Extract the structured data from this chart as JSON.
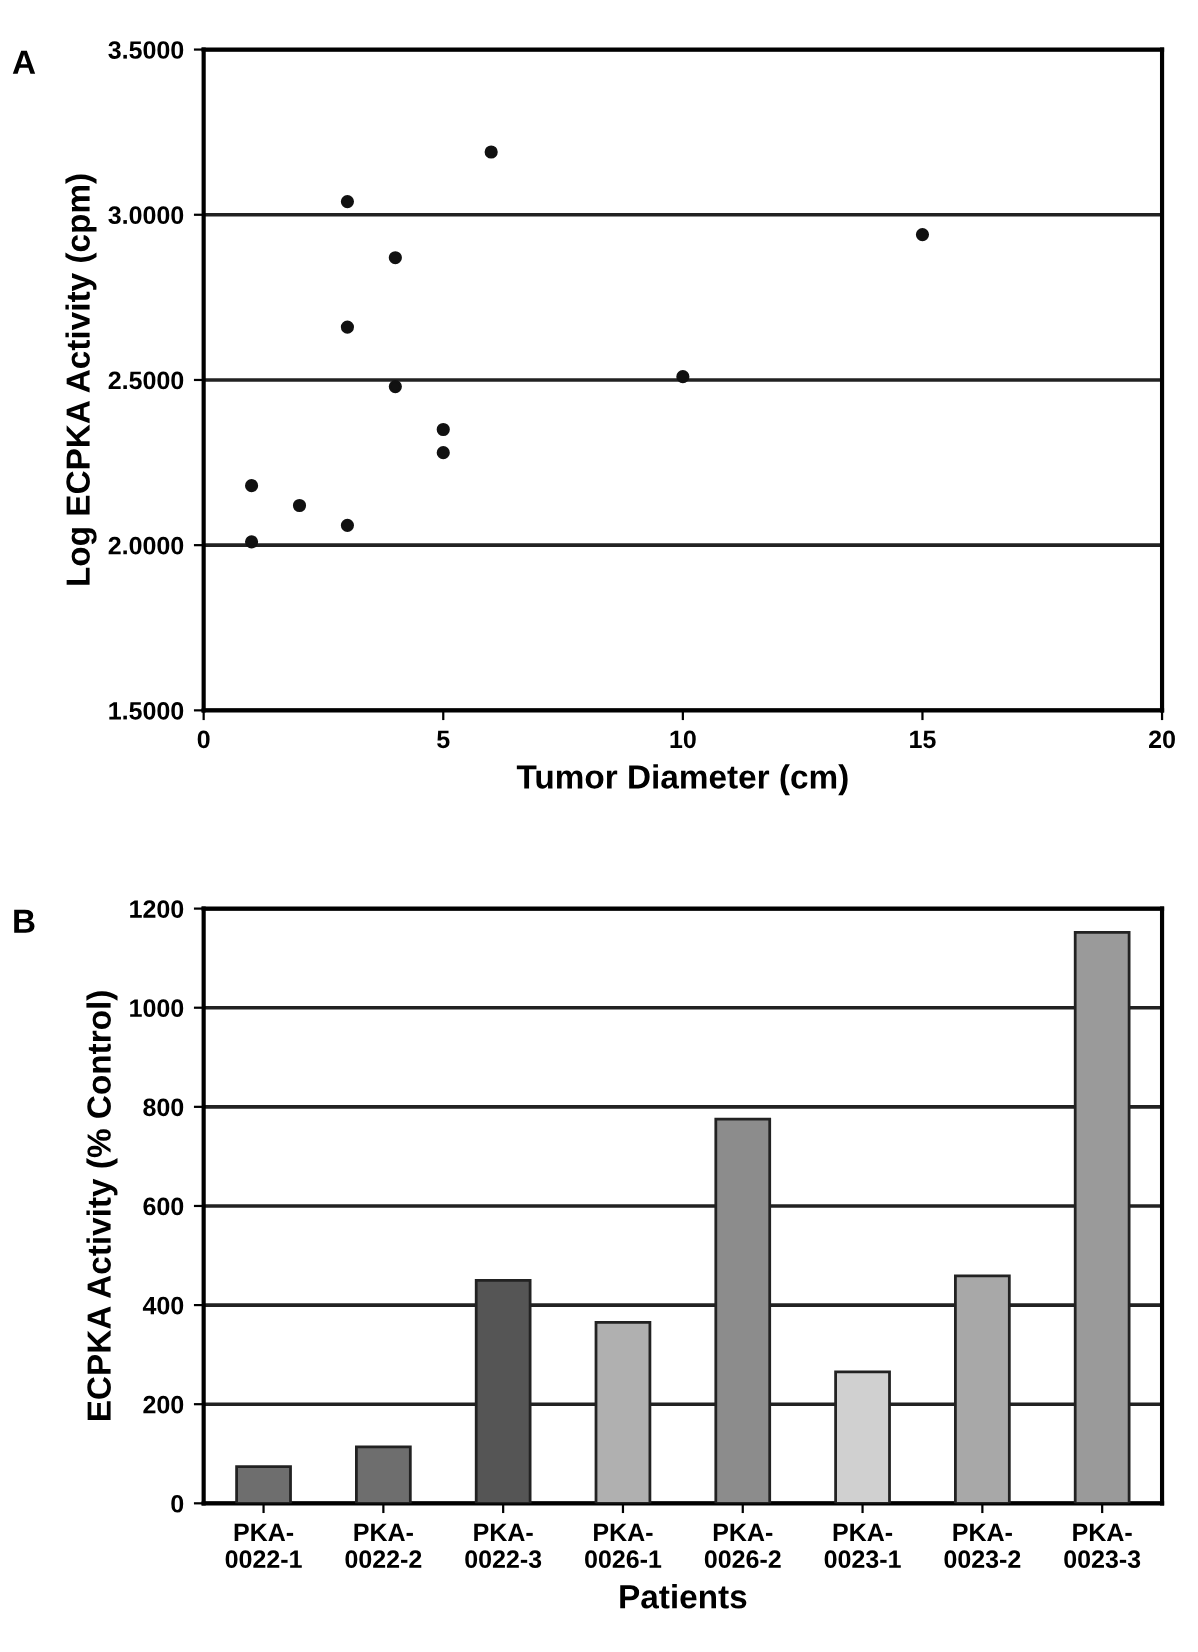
{
  "chart_data": [
    {
      "type": "scatter",
      "annotations": [
        "A"
      ],
      "xlabel": "Tumor Diameter (cm)",
      "ylabel": "Log ECPKA Activity (cpm)",
      "x": [
        6,
        3,
        4,
        3,
        4,
        5,
        5,
        1,
        2,
        3,
        1,
        10,
        15
      ],
      "values": [
        3.19,
        3.04,
        2.87,
        2.66,
        2.48,
        2.35,
        2.28,
        2.18,
        2.12,
        2.06,
        2.01,
        2.51,
        2.94
      ],
      "color": "#111111",
      "marker": "circle",
      "xlim": [
        0,
        20
      ],
      "xticks": [
        0,
        5,
        10,
        15,
        20
      ],
      "ylim": [
        1.5,
        3.5
      ],
      "yticks": [
        {
          "value": 1.5,
          "label": "1.5000"
        },
        {
          "value": 2.0,
          "label": "2.0000"
        },
        {
          "value": 2.5,
          "label": "2.5000"
        },
        {
          "value": 3.0,
          "label": "3.0000"
        },
        {
          "value": 3.5,
          "label": "3.5000"
        }
      ],
      "grid": "y"
    },
    {
      "type": "bar",
      "annotations": [
        "B"
      ],
      "xlabel": "Patients",
      "ylabel": "ECPKA Activity (% Control)",
      "categories": [
        "PKA-\n0022-1",
        "PKA-\n0022-2",
        "PKA-\n0022-3",
        "PKA-\n0026-1",
        "PKA-\n0026-2",
        "PKA-\n0023-1",
        "PKA-\n0023-2",
        "PKA-\n0023-3"
      ],
      "values": [
        74,
        114,
        450,
        365,
        775,
        265,
        459,
        1152
      ],
      "colors": [
        "#6e6e6e",
        "#6e6e6e",
        "#555555",
        "#b0b0b0",
        "#8c8c8c",
        "#d0d0d0",
        "#a8a8a8",
        "#9a9a9a"
      ],
      "ylim": [
        0,
        1200
      ],
      "yticks": [
        0,
        200,
        400,
        600,
        800,
        1000,
        1200
      ],
      "grid": "y"
    }
  ]
}
